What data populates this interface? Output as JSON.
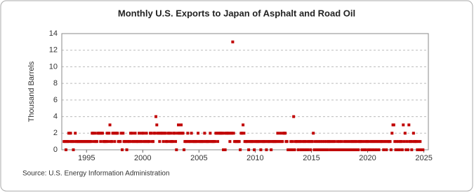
{
  "chart_data": {
    "type": "scatter",
    "title": "Monthly U.S. Exports to Japan of Asphalt and Road Oil",
    "y_label": "Thousand Barrels",
    "source": "Source: U.S. Energy Information Administration",
    "color": "#c00000",
    "grid": true,
    "xlim": [
      1992.8,
      2025.4
    ],
    "xticks": [
      1995,
      2000,
      2005,
      2010,
      2015,
      2020,
      2025
    ],
    "ylim": [
      0,
      14
    ],
    "yticks": [
      0,
      2,
      4,
      6,
      8,
      10,
      12,
      14
    ],
    "x": [
      1993.0,
      1993.08,
      1993.17,
      1993.25,
      1993.33,
      1993.42,
      1993.5,
      1993.58,
      1993.67,
      1993.75,
      1993.83,
      1993.92,
      1994.0,
      1994.08,
      1994.17,
      1994.25,
      1994.33,
      1994.42,
      1994.5,
      1994.58,
      1994.67,
      1994.75,
      1994.83,
      1994.92,
      1995.0,
      1995.08,
      1995.17,
      1995.25,
      1995.33,
      1995.42,
      1995.5,
      1995.58,
      1995.67,
      1995.75,
      1995.83,
      1995.92,
      1996.0,
      1996.08,
      1996.17,
      1996.25,
      1996.33,
      1996.42,
      1996.5,
      1996.58,
      1996.67,
      1996.75,
      1996.83,
      1996.92,
      1997.0,
      1997.08,
      1997.17,
      1997.25,
      1997.33,
      1997.42,
      1997.5,
      1997.58,
      1997.67,
      1997.75,
      1997.83,
      1997.92,
      1998.0,
      1998.08,
      1998.17,
      1998.25,
      1998.33,
      1998.42,
      1998.5,
      1998.58,
      1998.67,
      1998.75,
      1998.83,
      1998.92,
      1999.0,
      1999.08,
      1999.17,
      1999.25,
      1999.33,
      1999.42,
      1999.5,
      1999.58,
      1999.67,
      1999.75,
      1999.83,
      1999.92,
      2000.0,
      2000.08,
      2000.17,
      2000.25,
      2000.33,
      2000.42,
      2000.5,
      2000.58,
      2000.67,
      2000.75,
      2000.83,
      2000.92,
      2001.0,
      2001.08,
      2001.17,
      2001.25,
      2001.33,
      2001.42,
      2001.5,
      2001.58,
      2001.67,
      2001.75,
      2001.83,
      2001.92,
      2002.0,
      2002.08,
      2002.17,
      2002.25,
      2002.33,
      2002.42,
      2002.5,
      2002.58,
      2002.67,
      2002.75,
      2002.83,
      2002.92,
      2003.0,
      2003.08,
      2003.17,
      2003.25,
      2003.33,
      2003.42,
      2003.5,
      2003.58,
      2003.67,
      2003.75,
      2003.83,
      2003.92,
      2004.0,
      2004.08,
      2004.17,
      2004.25,
      2004.33,
      2004.42,
      2004.5,
      2004.58,
      2004.67,
      2004.75,
      2004.83,
      2004.92,
      2005.0,
      2005.08,
      2005.17,
      2005.25,
      2005.33,
      2005.42,
      2005.5,
      2005.58,
      2005.67,
      2005.75,
      2005.83,
      2005.92,
      2006.0,
      2006.08,
      2006.17,
      2006.25,
      2006.33,
      2006.42,
      2006.5,
      2006.58,
      2006.67,
      2006.75,
      2006.83,
      2006.92,
      2007.0,
      2007.08,
      2007.17,
      2007.25,
      2007.33,
      2007.42,
      2007.5,
      2007.58,
      2007.67,
      2007.75,
      2007.83,
      2007.92,
      2008.0,
      2008.08,
      2008.17,
      2008.25,
      2008.33,
      2008.42,
      2008.5,
      2008.58,
      2008.67,
      2008.75,
      2008.83,
      2008.92,
      2009.0,
      2009.08,
      2009.17,
      2009.25,
      2009.33,
      2009.42,
      2009.5,
      2009.58,
      2009.67,
      2009.75,
      2009.83,
      2009.92,
      2010.0,
      2010.08,
      2010.17,
      2010.25,
      2010.33,
      2010.42,
      2010.5,
      2010.58,
      2010.67,
      2010.75,
      2010.83,
      2010.92,
      2011.0,
      2011.08,
      2011.17,
      2011.25,
      2011.33,
      2011.42,
      2011.5,
      2011.58,
      2011.67,
      2011.75,
      2011.83,
      2011.92,
      2012.0,
      2012.08,
      2012.17,
      2012.25,
      2012.33,
      2012.42,
      2012.5,
      2012.58,
      2012.67,
      2012.75,
      2012.83,
      2012.92,
      2013.0,
      2013.08,
      2013.17,
      2013.25,
      2013.33,
      2013.42,
      2013.5,
      2013.58,
      2013.67,
      2013.75,
      2013.83,
      2013.92,
      2014.0,
      2014.08,
      2014.17,
      2014.25,
      2014.33,
      2014.42,
      2014.5,
      2014.58,
      2014.67,
      2014.75,
      2014.83,
      2014.92,
      2015.0,
      2015.08,
      2015.17,
      2015.25,
      2015.33,
      2015.42,
      2015.5,
      2015.58,
      2015.67,
      2015.75,
      2015.83,
      2015.92,
      2016.0,
      2016.08,
      2016.17,
      2016.25,
      2016.33,
      2016.42,
      2016.5,
      2016.58,
      2016.67,
      2016.75,
      2016.83,
      2016.92,
      2017.0,
      2017.08,
      2017.17,
      2017.25,
      2017.33,
      2017.42,
      2017.5,
      2017.58,
      2017.67,
      2017.75,
      2017.83,
      2017.92,
      2018.0,
      2018.08,
      2018.17,
      2018.25,
      2018.33,
      2018.42,
      2018.5,
      2018.58,
      2018.67,
      2018.75,
      2018.83,
      2018.92,
      2019.0,
      2019.08,
      2019.17,
      2019.25,
      2019.33,
      2019.42,
      2019.5,
      2019.58,
      2019.67,
      2019.75,
      2019.83,
      2019.92,
      2020.0,
      2020.08,
      2020.17,
      2020.25,
      2020.33,
      2020.42,
      2020.5,
      2020.58,
      2020.67,
      2020.75,
      2020.83,
      2020.92,
      2021.0,
      2021.08,
      2021.17,
      2021.25,
      2021.33,
      2021.42,
      2021.5,
      2021.58,
      2021.67,
      2021.75,
      2021.83,
      2021.92,
      2022.0,
      2022.08,
      2022.17,
      2022.25,
      2022.33,
      2022.42,
      2022.5,
      2022.58,
      2022.67,
      2022.75,
      2022.83,
      2022.92,
      2023.0,
      2023.08,
      2023.17,
      2023.25,
      2023.33,
      2023.42,
      2023.5,
      2023.58,
      2023.67,
      2023.75,
      2023.83,
      2023.92,
      2024.0,
      2024.08,
      2024.17,
      2024.25,
      2024.33,
      2024.42,
      2024.5,
      2024.58,
      2024.67,
      2024.75,
      2024.83,
      2024.92
    ],
    "values": [
      1,
      1,
      0,
      1,
      1,
      2,
      1,
      2,
      1,
      1,
      0,
      1,
      2,
      1,
      1,
      1,
      1,
      1,
      1,
      1,
      1,
      1,
      1,
      1,
      1,
      1,
      1,
      1,
      1,
      1,
      2,
      2,
      1,
      2,
      1,
      1,
      2,
      2,
      2,
      1,
      2,
      2,
      1,
      1,
      1,
      1,
      2,
      1,
      2,
      3,
      1,
      1,
      2,
      2,
      1,
      2,
      2,
      2,
      1,
      1,
      1,
      2,
      0,
      2,
      1,
      1,
      1,
      0,
      1,
      1,
      1,
      2,
      1,
      2,
      1,
      1,
      2,
      1,
      1,
      1,
      2,
      1,
      1,
      2,
      1,
      2,
      1,
      1,
      2,
      1,
      1,
      1,
      2,
      2,
      1,
      1,
      2,
      2,
      4,
      3,
      2,
      2,
      1,
      2,
      2,
      2,
      1,
      2,
      2,
      1,
      1,
      2,
      2,
      1,
      2,
      1,
      1,
      2,
      2,
      1,
      0,
      2,
      3,
      2,
      2,
      3,
      2,
      2,
      0,
      1,
      1,
      1,
      2,
      1,
      1,
      1,
      2,
      1,
      1,
      1,
      1,
      1,
      1,
      2,
      1,
      1,
      1,
      1,
      1,
      1,
      2,
      1,
      1,
      1,
      1,
      1,
      2,
      1,
      1,
      1,
      1,
      1,
      2,
      2,
      1,
      2,
      2,
      2,
      2,
      2,
      0,
      2,
      0,
      2,
      2,
      2,
      2,
      1,
      2,
      2,
      13,
      2,
      1,
      1,
      1,
      1,
      1,
      1,
      0,
      2,
      2,
      3,
      2,
      1,
      1,
      1,
      1,
      0,
      1,
      1,
      1,
      1,
      1,
      0,
      1,
      1,
      1,
      1,
      1,
      1,
      0,
      1,
      1,
      1,
      1,
      1,
      0,
      1,
      1,
      1,
      1,
      0,
      1,
      1,
      1,
      1,
      1,
      1,
      2,
      1,
      1,
      2,
      1,
      1,
      2,
      2,
      2,
      1,
      1,
      0,
      0,
      0,
      1,
      0,
      1,
      4,
      0,
      1,
      1,
      1,
      0,
      1,
      1,
      0,
      1,
      0,
      1,
      1,
      0,
      1,
      0,
      1,
      1,
      0,
      1,
      1,
      2,
      0,
      1,
      0,
      1,
      0,
      1,
      0,
      1,
      0,
      1,
      0,
      1,
      0,
      1,
      0,
      1,
      1,
      0,
      1,
      0,
      1,
      0,
      1,
      0,
      0,
      1,
      0,
      1,
      0,
      1,
      0,
      0,
      1,
      0,
      1,
      0,
      1,
      0,
      1,
      0,
      1,
      1,
      0,
      1,
      1,
      0,
      1,
      0,
      1,
      1,
      1,
      0,
      1,
      0,
      1,
      0,
      1,
      1,
      0,
      1,
      0,
      1,
      1,
      0,
      1,
      1,
      0,
      1,
      1,
      0,
      1,
      1,
      1,
      1,
      0,
      1,
      1,
      0,
      1,
      1,
      1,
      1,
      0,
      2,
      3,
      3,
      1,
      0,
      1,
      0,
      1,
      0,
      1,
      1,
      0,
      3,
      1,
      2,
      0,
      1,
      0,
      3,
      1,
      1,
      0,
      1,
      2,
      1,
      1,
      1,
      0,
      1,
      0,
      1,
      0,
      0,
      0
    ]
  }
}
